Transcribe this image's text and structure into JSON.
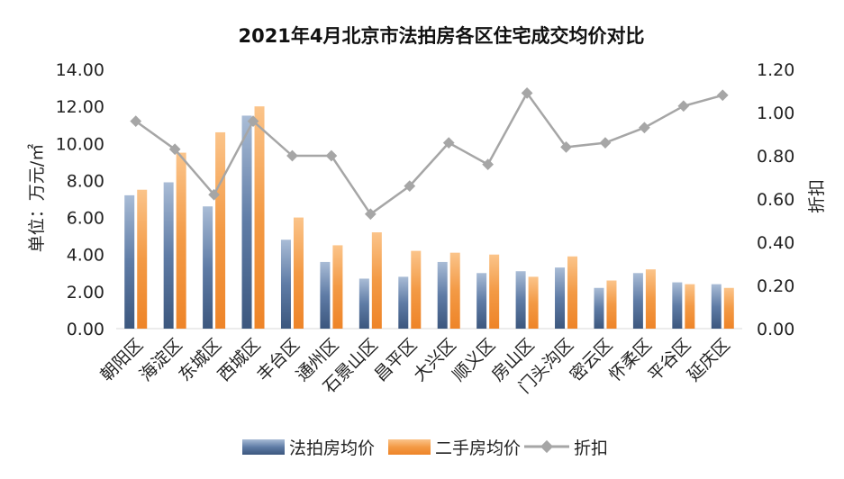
{
  "chart_data": {
    "type": "bar",
    "title": "2021年4月北京市法拍房各区住宅成交均价对比",
    "ylabel": "单位：万元/㎡",
    "y2label": "折扣",
    "ylim": [
      0,
      14
    ],
    "y2lim": [
      0,
      1.2
    ],
    "yticks": [
      "0.00",
      "2.00",
      "4.00",
      "6.00",
      "8.00",
      "10.00",
      "12.00",
      "14.00"
    ],
    "y2ticks": [
      "0.00",
      "0.20",
      "0.40",
      "0.60",
      "0.80",
      "1.00",
      "1.20"
    ],
    "grid": false,
    "legend_position": "bottom",
    "categories": [
      "朝阳区",
      "海淀区",
      "东城区",
      "西城区",
      "丰台区",
      "通州区",
      "石景山区",
      "昌平区",
      "大兴区",
      "顺义区",
      "房山区",
      "门头沟区",
      "密云区",
      "怀柔区",
      "平谷区",
      "延庆区"
    ],
    "series": [
      {
        "name": "法拍房均价",
        "type": "bar",
        "axis": "left",
        "color": "#4a6690",
        "values": [
          7.2,
          7.9,
          6.6,
          11.5,
          4.8,
          3.6,
          2.7,
          2.8,
          3.6,
          3.0,
          3.1,
          3.3,
          2.2,
          3.0,
          2.5,
          2.4
        ]
      },
      {
        "name": "二手房均价",
        "type": "bar",
        "axis": "left",
        "color": "#f0953a",
        "values": [
          7.5,
          9.5,
          10.6,
          12.0,
          6.0,
          4.5,
          5.2,
          4.2,
          4.1,
          4.0,
          2.8,
          3.9,
          2.6,
          3.2,
          2.4,
          2.2
        ]
      },
      {
        "name": "折扣",
        "type": "line",
        "axis": "right",
        "color": "#a6a6a6",
        "values": [
          0.96,
          0.83,
          0.62,
          0.96,
          0.8,
          0.8,
          0.53,
          0.66,
          0.86,
          0.76,
          1.09,
          0.84,
          0.86,
          0.93,
          1.03,
          1.08
        ]
      }
    ]
  }
}
